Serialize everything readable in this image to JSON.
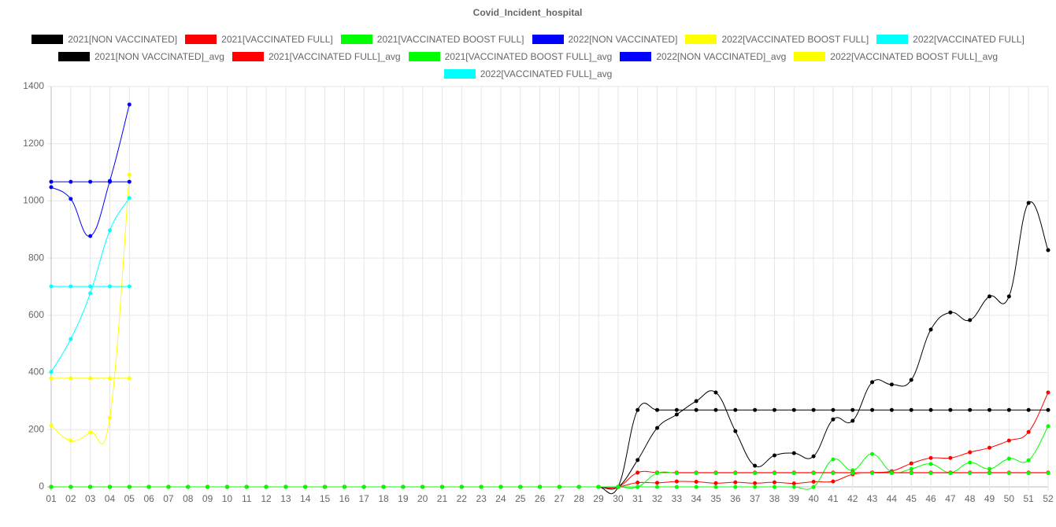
{
  "chart_data": {
    "type": "line",
    "title": "Covid_Incident_hospital",
    "smooth": true,
    "grid": true,
    "legend": "top",
    "categories": [
      "01",
      "02",
      "03",
      "04",
      "05",
      "06",
      "07",
      "08",
      "09",
      "10",
      "11",
      "12",
      "13",
      "14",
      "15",
      "16",
      "17",
      "18",
      "19",
      "20",
      "21",
      "22",
      "23",
      "24",
      "25",
      "26",
      "27",
      "28",
      "29",
      "30",
      "31",
      "32",
      "33",
      "34",
      "35",
      "36",
      "37",
      "38",
      "39",
      "40",
      "41",
      "42",
      "43",
      "44",
      "45",
      "46",
      "47",
      "48",
      "49",
      "50",
      "51",
      "52"
    ],
    "ylim": [
      0,
      1400
    ],
    "yticks": [
      0,
      200,
      400,
      600,
      800,
      1000,
      1200,
      1400
    ],
    "series": [
      {
        "name": "2021[NON VACCINATED]",
        "color": "#000000",
        "values": [
          0,
          0,
          0,
          0,
          0,
          0,
          0,
          0,
          0,
          0,
          0,
          0,
          0,
          0,
          0,
          0,
          0,
          0,
          0,
          0,
          0,
          0,
          0,
          0,
          0,
          0,
          0,
          0,
          0,
          0,
          94,
          206,
          253,
          300,
          330,
          195,
          74,
          110,
          118,
          107,
          236,
          231,
          366,
          358,
          374,
          550,
          610,
          583,
          666,
          666,
          993,
          828
        ]
      },
      {
        "name": "2021[VACCINATED FULL]",
        "color": "#ff0000",
        "values": [
          0,
          0,
          0,
          0,
          0,
          0,
          0,
          0,
          0,
          0,
          0,
          0,
          0,
          0,
          0,
          0,
          0,
          0,
          0,
          0,
          0,
          0,
          0,
          0,
          0,
          0,
          0,
          0,
          0,
          0,
          15,
          14,
          19,
          18,
          13,
          16,
          13,
          16,
          12,
          18,
          19,
          44,
          50,
          55,
          82,
          101,
          101,
          121,
          137,
          162,
          192,
          330
        ]
      },
      {
        "name": "2021[VACCINATED BOOST FULL]",
        "color": "#00ff00",
        "values": [
          0,
          0,
          0,
          0,
          0,
          0,
          0,
          0,
          0,
          0,
          0,
          0,
          0,
          0,
          0,
          0,
          0,
          0,
          0,
          0,
          0,
          0,
          0,
          0,
          0,
          0,
          0,
          0,
          0,
          0,
          0,
          0,
          0,
          0,
          0,
          0,
          0,
          0,
          0,
          0,
          96,
          58,
          115,
          52,
          63,
          80,
          50,
          85,
          63,
          99,
          93,
          212
        ]
      },
      {
        "name": "2022[NON VACCINATED]",
        "color": "#0000ff",
        "values": [
          1048,
          1007,
          877,
          1070,
          1337,
          null,
          null,
          null,
          null,
          null,
          null,
          null,
          null,
          null,
          null,
          null,
          null,
          null,
          null,
          null,
          null,
          null,
          null,
          null,
          null,
          null,
          null,
          null,
          null,
          null,
          null,
          null,
          null,
          null,
          null,
          null,
          null,
          null,
          null,
          null,
          null,
          null,
          null,
          null,
          null,
          null,
          null,
          null,
          null,
          null,
          null,
          null
        ]
      },
      {
        "name": "2022[VACCINATED BOOST FULL]",
        "color": "#ffff00",
        "values": [
          215,
          162,
          190,
          242,
          1092,
          null,
          null,
          null,
          null,
          null,
          null,
          null,
          null,
          null,
          null,
          null,
          null,
          null,
          null,
          null,
          null,
          null,
          null,
          null,
          null,
          null,
          null,
          null,
          null,
          null,
          null,
          null,
          null,
          null,
          null,
          null,
          null,
          null,
          null,
          null,
          null,
          null,
          null,
          null,
          null,
          null,
          null,
          null,
          null,
          null,
          null,
          null
        ]
      },
      {
        "name": "2022[VACCINATED FULL]",
        "color": "#00ffff",
        "values": [
          402,
          517,
          677,
          897,
          1010,
          null,
          null,
          null,
          null,
          null,
          null,
          null,
          null,
          null,
          null,
          null,
          null,
          null,
          null,
          null,
          null,
          null,
          null,
          null,
          null,
          null,
          null,
          null,
          null,
          null,
          null,
          null,
          null,
          null,
          null,
          null,
          null,
          null,
          null,
          null,
          null,
          null,
          null,
          null,
          null,
          null,
          null,
          null,
          null,
          null,
          null,
          null
        ]
      },
      {
        "name": "2021[NON VACCINATED]_avg",
        "color": "#000000",
        "values": [
          0,
          0,
          0,
          0,
          0,
          0,
          0,
          0,
          0,
          0,
          0,
          0,
          0,
          0,
          0,
          0,
          0,
          0,
          0,
          0,
          0,
          0,
          0,
          0,
          0,
          0,
          0,
          0,
          0,
          0,
          269,
          269,
          269,
          269,
          269,
          269,
          269,
          269,
          269,
          269,
          269,
          269,
          269,
          269,
          269,
          269,
          269,
          269,
          269,
          269,
          269,
          269
        ]
      },
      {
        "name": "2021[VACCINATED FULL]_avg",
        "color": "#ff0000",
        "values": [
          0,
          0,
          0,
          0,
          0,
          0,
          0,
          0,
          0,
          0,
          0,
          0,
          0,
          0,
          0,
          0,
          0,
          0,
          0,
          0,
          0,
          0,
          0,
          0,
          0,
          0,
          0,
          0,
          0,
          0,
          50,
          50,
          50,
          50,
          50,
          50,
          50,
          50,
          50,
          50,
          50,
          50,
          50,
          50,
          50,
          50,
          50,
          50,
          50,
          50,
          50,
          50
        ]
      },
      {
        "name": "2021[VACCINATED BOOST FULL]_avg",
        "color": "#00ff00",
        "values": [
          0,
          0,
          0,
          0,
          0,
          0,
          0,
          0,
          0,
          0,
          0,
          0,
          0,
          0,
          0,
          0,
          0,
          0,
          0,
          0,
          0,
          0,
          0,
          0,
          0,
          0,
          0,
          0,
          0,
          0,
          0,
          48,
          48,
          48,
          48,
          48,
          48,
          48,
          48,
          48,
          48,
          48,
          48,
          48,
          48,
          48,
          48,
          48,
          48,
          48,
          48,
          48
        ]
      },
      {
        "name": "2022[NON VACCINATED]_avg",
        "color": "#0000ff",
        "values": [
          1067,
          1067,
          1067,
          1067,
          1067,
          null,
          null,
          null,
          null,
          null,
          null,
          null,
          null,
          null,
          null,
          null,
          null,
          null,
          null,
          null,
          null,
          null,
          null,
          null,
          null,
          null,
          null,
          null,
          null,
          null,
          null,
          null,
          null,
          null,
          null,
          null,
          null,
          null,
          null,
          null,
          null,
          null,
          null,
          null,
          null,
          null,
          null,
          null,
          null,
          null,
          null,
          null
        ]
      },
      {
        "name": "2022[VACCINATED BOOST FULL]_avg",
        "color": "#ffff00",
        "values": [
          380,
          380,
          380,
          380,
          380,
          null,
          null,
          null,
          null,
          null,
          null,
          null,
          null,
          null,
          null,
          null,
          null,
          null,
          null,
          null,
          null,
          null,
          null,
          null,
          null,
          null,
          null,
          null,
          null,
          null,
          null,
          null,
          null,
          null,
          null,
          null,
          null,
          null,
          null,
          null,
          null,
          null,
          null,
          null,
          null,
          null,
          null,
          null,
          null,
          null,
          null,
          null
        ]
      },
      {
        "name": "2022[VACCINATED FULL]_avg",
        "color": "#00ffff",
        "values": [
          701,
          701,
          701,
          701,
          701,
          null,
          null,
          null,
          null,
          null,
          null,
          null,
          null,
          null,
          null,
          null,
          null,
          null,
          null,
          null,
          null,
          null,
          null,
          null,
          null,
          null,
          null,
          null,
          null,
          null,
          null,
          null,
          null,
          null,
          null,
          null,
          null,
          null,
          null,
          null,
          null,
          null,
          null,
          null,
          null,
          null,
          null,
          null,
          null,
          null,
          null,
          null
        ]
      }
    ]
  }
}
